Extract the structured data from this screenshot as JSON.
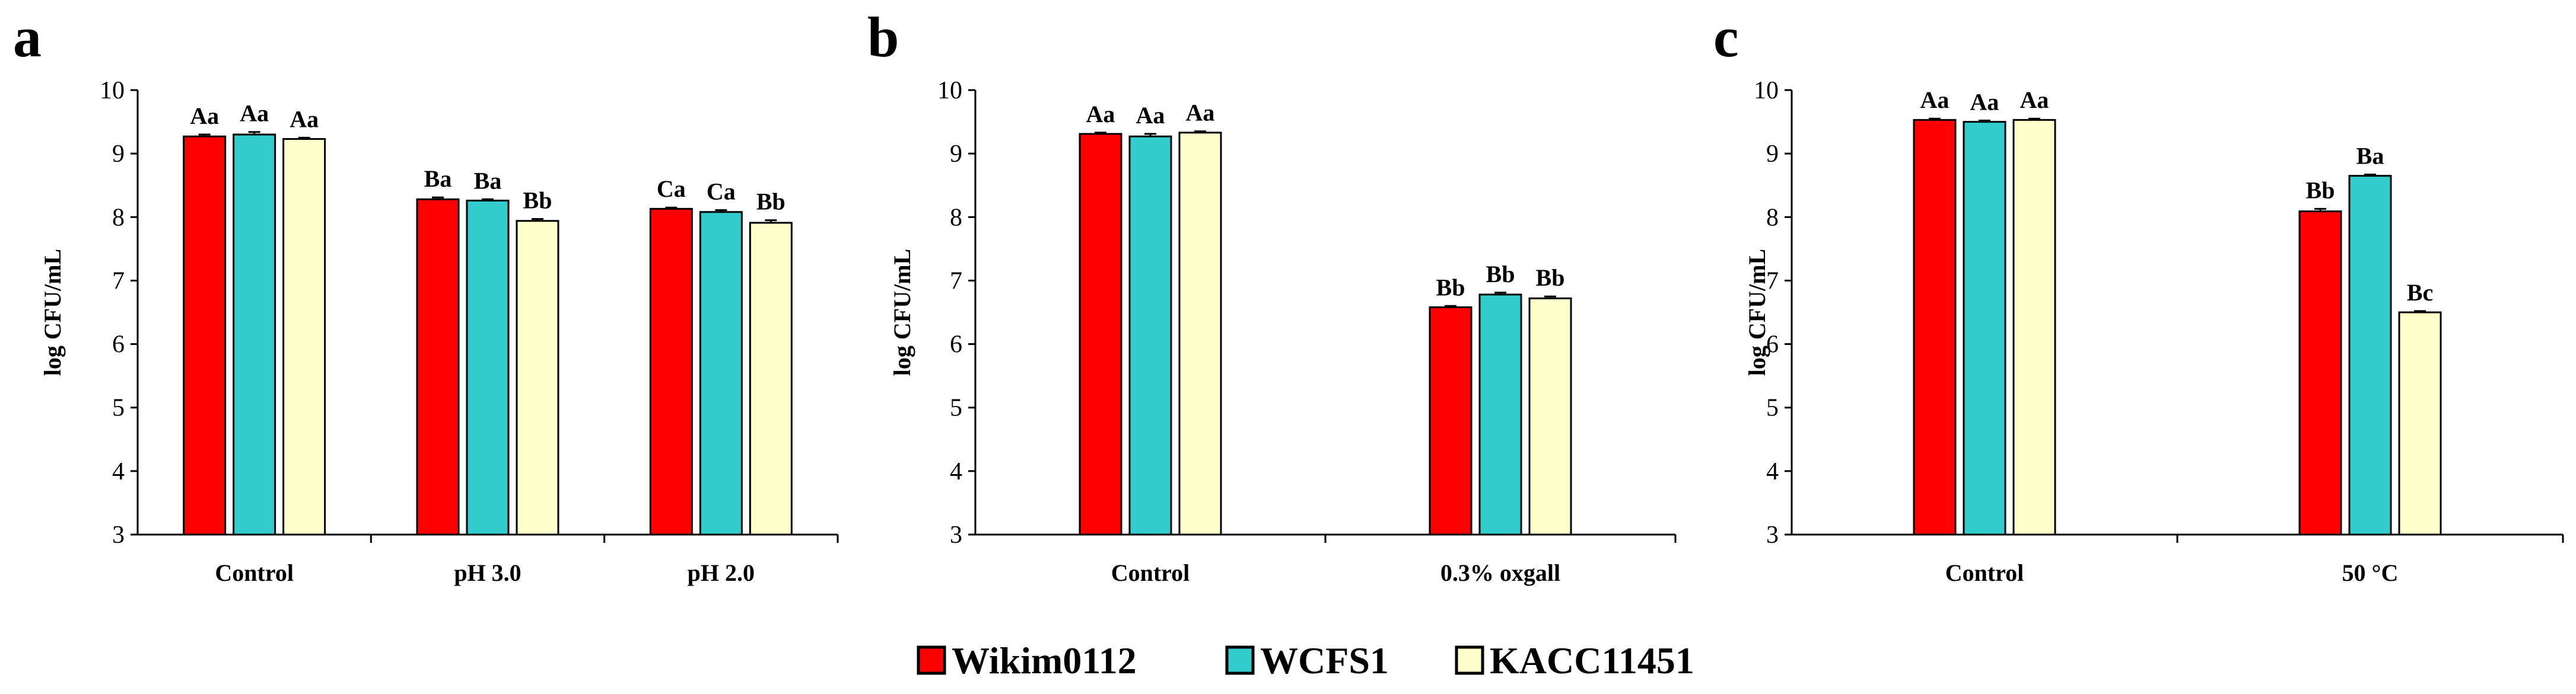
{
  "legend": [
    {
      "name": "Wikim0112",
      "color": "#ff0000"
    },
    {
      "name": "WCFS1",
      "color": "#33cccc"
    },
    {
      "name": "KACC11451",
      "color": "#ffffcc"
    }
  ],
  "chart_data": [
    {
      "panel": "a",
      "type": "bar",
      "ylabel": "log CFU/mL",
      "ylim": [
        3,
        10
      ],
      "yticks": [
        3,
        4,
        5,
        6,
        7,
        8,
        9,
        10
      ],
      "categories": [
        "Control",
        "pH 3.0",
        "pH 2.0"
      ],
      "series": [
        {
          "name": "Wikim0112",
          "values": [
            9.27,
            8.28,
            8.13
          ],
          "errors": [
            0.03,
            0.03,
            0.02
          ],
          "labels": [
            "Aa",
            "Ba",
            "Ca"
          ]
        },
        {
          "name": "WCFS1",
          "values": [
            9.3,
            8.26,
            8.08
          ],
          "errors": [
            0.04,
            0.02,
            0.03
          ],
          "labels": [
            "Aa",
            "Ba",
            "Ca"
          ]
        },
        {
          "name": "KACC11451",
          "values": [
            9.23,
            7.94,
            7.91
          ],
          "errors": [
            0.02,
            0.03,
            0.04
          ],
          "labels": [
            "Aa",
            "Bb",
            "Bb"
          ]
        }
      ]
    },
    {
      "panel": "b",
      "type": "bar",
      "ylabel": "log CFU/mL",
      "ylim": [
        3,
        10
      ],
      "yticks": [
        3,
        4,
        5,
        6,
        7,
        8,
        9,
        10
      ],
      "categories": [
        "Control",
        "0.3% oxgall"
      ],
      "series": [
        {
          "name": "Wikim0112",
          "values": [
            9.31,
            6.58
          ],
          "errors": [
            0.02,
            0.02
          ],
          "labels": [
            "Aa",
            "Bb"
          ]
        },
        {
          "name": "WCFS1",
          "values": [
            9.27,
            6.78
          ],
          "errors": [
            0.04,
            0.03
          ],
          "labels": [
            "Aa",
            "Bb"
          ]
        },
        {
          "name": "KACC11451",
          "values": [
            9.33,
            6.72
          ],
          "errors": [
            0.02,
            0.03
          ],
          "labels": [
            "Aa",
            "Bb"
          ]
        }
      ]
    },
    {
      "panel": "c",
      "type": "bar",
      "ylabel": "log CFU/mL",
      "ylim": [
        3,
        10
      ],
      "yticks": [
        3,
        4,
        5,
        6,
        7,
        8,
        9,
        10
      ],
      "categories": [
        "Control",
        "50 °C"
      ],
      "series": [
        {
          "name": "Wikim0112",
          "values": [
            9.53,
            8.09
          ],
          "errors": [
            0.02,
            0.04
          ],
          "labels": [
            "Aa",
            "Bb"
          ]
        },
        {
          "name": "WCFS1",
          "values": [
            9.5,
            8.65
          ],
          "errors": [
            0.02,
            0.02
          ],
          "labels": [
            "Aa",
            "Ba"
          ]
        },
        {
          "name": "KACC11451",
          "values": [
            9.53,
            6.5
          ],
          "errors": [
            0.02,
            0.02
          ],
          "labels": [
            "Aa",
            "Bc"
          ]
        }
      ]
    }
  ]
}
